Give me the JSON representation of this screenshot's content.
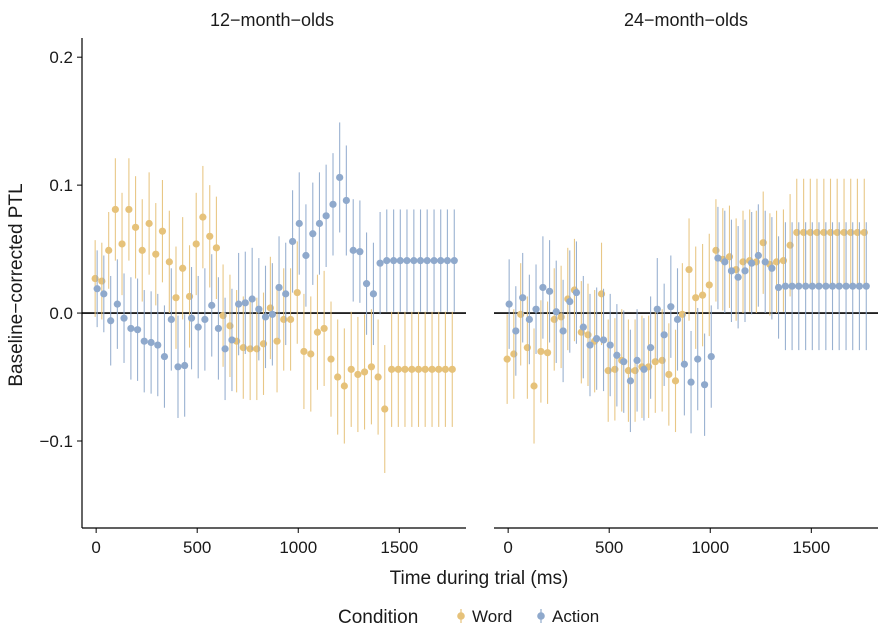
{
  "chart_data": {
    "type": "scatter",
    "facets": [
      {
        "title": "12−month−olds",
        "series": [
          {
            "name": "Word",
            "color": "#E6C27A",
            "x": [
              0,
              33,
              67,
              100,
              133,
              167,
              200,
              233,
              267,
              300,
              333,
              367,
              400,
              433,
              467,
              500,
              533,
              567,
              600,
              633,
              667,
              700,
              733,
              767,
              800,
              833,
              867,
              900,
              933,
              967,
              1000,
              1033,
              1067,
              1100,
              1133,
              1167,
              1200,
              1233,
              1267,
              1300,
              1333,
              1367,
              1400,
              1433,
              1467,
              1500,
              1533,
              1567,
              1600,
              1633,
              1667,
              1700,
              1733,
              1767
            ],
            "y": [
              0.027,
              0.025,
              0.049,
              0.081,
              0.054,
              0.081,
              0.067,
              0.049,
              0.07,
              0.046,
              0.064,
              0.04,
              0.012,
              0.035,
              0.013,
              0.054,
              0.075,
              0.06,
              0.051,
              -0.002,
              -0.01,
              -0.022,
              -0.027,
              -0.028,
              -0.028,
              -0.024,
              0.004,
              -0.022,
              -0.005,
              -0.005,
              0.016,
              -0.03,
              -0.032,
              -0.015,
              -0.012,
              -0.036,
              -0.05,
              -0.057,
              -0.044,
              -0.048,
              -0.046,
              -0.042,
              -0.05,
              -0.075,
              -0.044,
              -0.044,
              -0.044,
              -0.044,
              -0.044,
              -0.044,
              -0.044,
              -0.044,
              -0.044,
              -0.044
            ],
            "err": [
              0.03,
              0.03,
              0.03,
              0.04,
              0.04,
              0.04,
              0.04,
              0.04,
              0.04,
              0.04,
              0.04,
              0.04,
              0.04,
              0.04,
              0.04,
              0.04,
              0.04,
              0.04,
              0.04,
              0.04,
              0.04,
              0.04,
              0.04,
              0.04,
              0.04,
              0.04,
              0.04,
              0.04,
              0.04,
              0.04,
              0.04,
              0.045,
              0.045,
              0.045,
              0.045,
              0.045,
              0.045,
              0.045,
              0.045,
              0.045,
              0.045,
              0.045,
              0.045,
              0.05,
              0.045,
              0.045,
              0.045,
              0.045,
              0.045,
              0.045,
              0.045,
              0.045,
              0.045,
              0.045
            ]
          },
          {
            "name": "Action",
            "color": "#8FA9CC",
            "x": [
              0,
              33,
              67,
              100,
              133,
              167,
              200,
              233,
              267,
              300,
              333,
              367,
              400,
              433,
              467,
              500,
              533,
              567,
              600,
              633,
              667,
              700,
              733,
              767,
              800,
              833,
              867,
              900,
              933,
              967,
              1000,
              1033,
              1067,
              1100,
              1133,
              1167,
              1200,
              1233,
              1267,
              1300,
              1333,
              1367,
              1400,
              1433,
              1467,
              1500,
              1533,
              1567,
              1600,
              1633,
              1667,
              1700,
              1733,
              1767
            ],
            "y": [
              0.019,
              0.015,
              -0.006,
              0.007,
              -0.004,
              -0.012,
              -0.013,
              -0.022,
              -0.023,
              -0.025,
              -0.034,
              -0.005,
              -0.042,
              -0.041,
              -0.004,
              -0.011,
              -0.005,
              0.006,
              -0.012,
              -0.028,
              -0.021,
              0.007,
              0.008,
              0.011,
              0.003,
              -0.003,
              -0.001,
              0.02,
              0.015,
              0.056,
              0.07,
              0.045,
              0.062,
              0.07,
              0.076,
              0.085,
              0.106,
              0.088,
              0.049,
              0.048,
              0.023,
              0.015,
              0.039,
              0.041,
              0.041,
              0.041,
              0.041,
              0.041,
              0.041,
              0.041,
              0.041,
              0.041,
              0.041,
              0.041
            ],
            "err": [
              0.03,
              0.03,
              0.035,
              0.035,
              0.035,
              0.04,
              0.04,
              0.04,
              0.04,
              0.04,
              0.04,
              0.04,
              0.04,
              0.04,
              0.04,
              0.04,
              0.04,
              0.04,
              0.04,
              0.04,
              0.04,
              0.04,
              0.04,
              0.04,
              0.04,
              0.04,
              0.04,
              0.04,
              0.04,
              0.04,
              0.04,
              0.04,
              0.04,
              0.04,
              0.04,
              0.04,
              0.043,
              0.043,
              0.04,
              0.04,
              0.04,
              0.04,
              0.04,
              0.04,
              0.04,
              0.04,
              0.04,
              0.04,
              0.04,
              0.04,
              0.04,
              0.04,
              0.04,
              0.04
            ]
          }
        ]
      },
      {
        "title": "24−month−olds",
        "series": [
          {
            "name": "Word",
            "color": "#E6C27A",
            "x": [
              0,
              33,
              67,
              100,
              133,
              167,
              200,
              233,
              267,
              300,
              333,
              367,
              400,
              433,
              467,
              500,
              533,
              567,
              600,
              633,
              667,
              700,
              733,
              767,
              800,
              833,
              867,
              900,
              933,
              967,
              1000,
              1033,
              1067,
              1100,
              1133,
              1167,
              1200,
              1233,
              1267,
              1300,
              1333,
              1367,
              1400,
              1433,
              1467,
              1500,
              1533,
              1567,
              1600,
              1633,
              1667,
              1700,
              1733,
              1767
            ],
            "y": [
              -0.036,
              -0.032,
              -0.001,
              -0.027,
              -0.057,
              -0.03,
              -0.031,
              -0.005,
              -0.003,
              0.011,
              0.018,
              -0.015,
              -0.017,
              -0.022,
              0.015,
              -0.045,
              -0.044,
              -0.037,
              -0.045,
              -0.045,
              -0.042,
              -0.042,
              -0.038,
              -0.037,
              -0.048,
              -0.053,
              -0.001,
              0.034,
              0.012,
              0.014,
              0.022,
              0.049,
              0.042,
              0.044,
              0.034,
              0.04,
              0.041,
              0.04,
              0.055,
              0.038,
              0.04,
              0.041,
              0.053,
              0.063,
              0.063,
              0.063,
              0.063,
              0.063,
              0.063,
              0.063,
              0.063,
              0.063,
              0.063,
              0.063
            ],
            "err": [
              0.035,
              0.035,
              0.04,
              0.04,
              0.045,
              0.04,
              0.04,
              0.04,
              0.04,
              0.04,
              0.04,
              0.04,
              0.04,
              0.04,
              0.04,
              0.04,
              0.04,
              0.04,
              0.04,
              0.04,
              0.04,
              0.04,
              0.04,
              0.04,
              0.04,
              0.04,
              0.04,
              0.04,
              0.04,
              0.04,
              0.04,
              0.04,
              0.04,
              0.04,
              0.04,
              0.04,
              0.04,
              0.04,
              0.04,
              0.04,
              0.04,
              0.04,
              0.04,
              0.042,
              0.042,
              0.042,
              0.042,
              0.042,
              0.042,
              0.042,
              0.042,
              0.042,
              0.042,
              0.042
            ]
          },
          {
            "name": "Action",
            "color": "#8FA9CC",
            "x": [
              0,
              33,
              67,
              100,
              133,
              167,
              200,
              233,
              267,
              300,
              333,
              367,
              400,
              433,
              467,
              500,
              533,
              567,
              600,
              633,
              667,
              700,
              733,
              767,
              800,
              833,
              867,
              900,
              933,
              967,
              1000,
              1033,
              1067,
              1100,
              1133,
              1167,
              1200,
              1233,
              1267,
              1300,
              1333,
              1367,
              1400,
              1433,
              1467,
              1500,
              1533,
              1567,
              1600,
              1633,
              1667,
              1700,
              1733,
              1767
            ],
            "y": [
              0.007,
              -0.014,
              0.012,
              -0.005,
              0.003,
              0.02,
              0.017,
              0.001,
              -0.014,
              0.009,
              0.016,
              -0.011,
              -0.025,
              -0.02,
              -0.021,
              -0.025,
              -0.033,
              -0.038,
              -0.053,
              -0.037,
              -0.044,
              -0.027,
              0.003,
              -0.017,
              0.005,
              -0.005,
              -0.04,
              -0.054,
              -0.036,
              -0.056,
              -0.034,
              0.043,
              0.04,
              0.033,
              0.028,
              0.033,
              0.039,
              0.045,
              0.04,
              0.035,
              0.02,
              0.021,
              0.021,
              0.021,
              0.021,
              0.021,
              0.021,
              0.021,
              0.021,
              0.021,
              0.021,
              0.021,
              0.021,
              0.021
            ],
            "err": [
              0.035,
              0.035,
              0.035,
              0.035,
              0.035,
              0.04,
              0.04,
              0.04,
              0.04,
              0.04,
              0.04,
              0.04,
              0.04,
              0.04,
              0.04,
              0.04,
              0.04,
              0.04,
              0.04,
              0.04,
              0.04,
              0.04,
              0.04,
              0.04,
              0.04,
              0.04,
              0.04,
              0.04,
              0.04,
              0.04,
              0.04,
              0.04,
              0.04,
              0.04,
              0.04,
              0.04,
              0.04,
              0.04,
              0.04,
              0.04,
              0.04,
              0.05,
              0.05,
              0.05,
              0.05,
              0.05,
              0.05,
              0.05,
              0.05,
              0.05,
              0.05,
              0.05,
              0.05,
              0.05
            ]
          }
        ]
      }
    ],
    "xlabel": "Time during trial (ms)",
    "ylabel": "Baseline−corrected PTL",
    "xlim": [
      -70,
      1830
    ],
    "ylim": [
      -0.168,
      0.215
    ],
    "xticks": [
      0,
      500,
      1000,
      1500
    ],
    "xtick_labels": [
      "0",
      "500",
      "1000",
      "1500"
    ],
    "yticks": [
      0.2,
      0.1,
      0.0,
      -0.1
    ],
    "ytick_labels": [
      "0.2",
      "0.1",
      "0.0",
      "−0.1"
    ],
    "reference_line_y": 0,
    "grid": false,
    "legend": {
      "title": "Condition",
      "position": "bottom",
      "items": [
        {
          "label": "Word",
          "color": "#E6C27A"
        },
        {
          "label": "Action",
          "color": "#8FA9CC"
        }
      ]
    }
  }
}
